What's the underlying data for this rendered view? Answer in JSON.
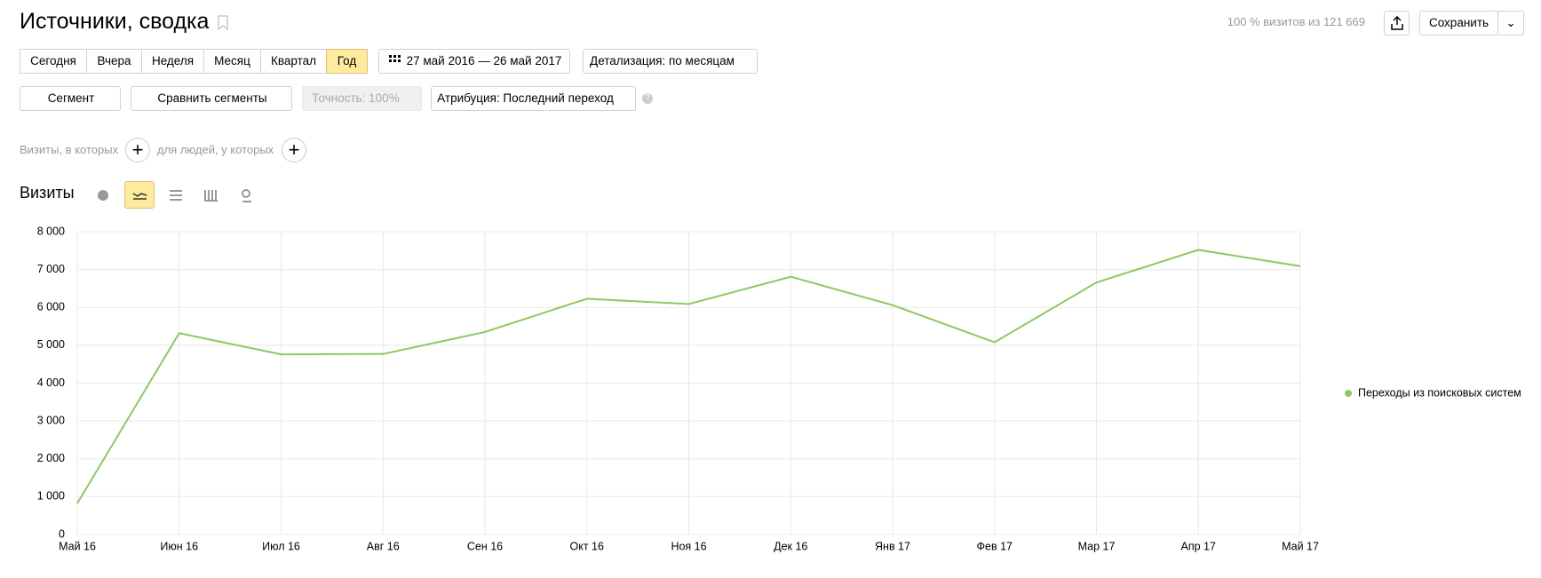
{
  "header": {
    "title": "Источники, сводка",
    "visits_summary": "100 % визитов из 121 669",
    "save": "Сохранить"
  },
  "toolbar": {
    "periods": [
      "Сегодня",
      "Вчера",
      "Неделя",
      "Месяц",
      "Квартал",
      "Год"
    ],
    "date_range": "27 май 2016 — 26 май 2017",
    "detail": "Детализация: по месяцам",
    "segment": "Сегмент",
    "compare": "Сравнить сегменты",
    "accuracy": "Точность: 100%",
    "attribution": "Атрибуция: Последний переход"
  },
  "filters": {
    "visits": "Визиты, в которых",
    "people": "для людей, у которых"
  },
  "chart_data": {
    "type": "line",
    "title": "Визиты",
    "categories": [
      "Май 16",
      "Июн 16",
      "Июл 16",
      "Авг 16",
      "Сен 16",
      "Окт 16",
      "Ноя 16",
      "Дек 16",
      "Янв 17",
      "Фев 17",
      "Мар 17",
      "Апр 17",
      "Май 17"
    ],
    "series": [
      {
        "name": "Переходы из поисковых систем",
        "color": "#8dc863",
        "values": [
          820,
          5320,
          4760,
          4770,
          5350,
          6230,
          6090,
          6810,
          6060,
          5080,
          6660,
          7520,
          7090
        ]
      }
    ],
    "ylim": [
      0,
      8000
    ],
    "yticks": [
      0,
      {
        "value": 1000,
        "label": "1 000"
      },
      {
        "value": 2000,
        "label": "2 000"
      },
      {
        "value": 3000,
        "label": "3 000"
      },
      {
        "value": 4000,
        "label": "4 000"
      },
      {
        "value": 5000,
        "label": "5 000"
      },
      {
        "value": 6000,
        "label": "6 000"
      },
      {
        "value": 7000,
        "label": "7 000"
      },
      {
        "value": 8000,
        "label": "8 000"
      }
    ],
    "grid": true,
    "legend": "right"
  }
}
